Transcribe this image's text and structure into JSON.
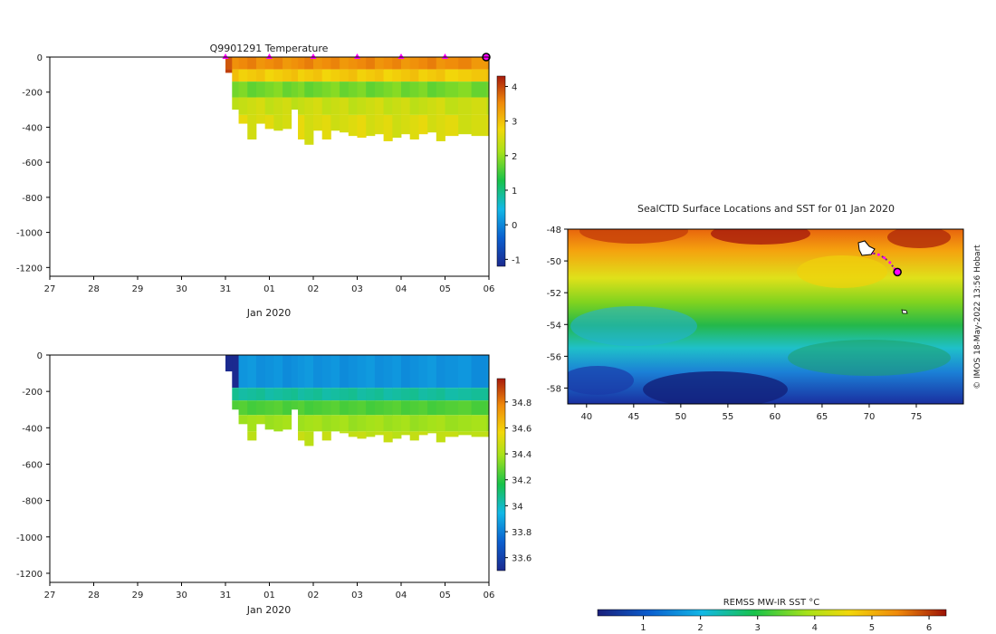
{
  "colors": {
    "temp_min": "#1b2a8f",
    "temp_max": "#a81b0c",
    "salt_min": "#1b2a8f",
    "salt_max": "#a81b0c",
    "sst_min": "#1a1f7a",
    "sst_max": "#9c1205",
    "profile_marker": "#ff00ff",
    "track": "#7a1f8a"
  },
  "chart_data": [
    {
      "id": "temperature",
      "type": "heatmap",
      "title": "Q9901291  Temperature",
      "xlabel": "Jan 2020",
      "ylabel": "",
      "x_ticks": [
        "27",
        "28",
        "29",
        "30",
        "31",
        "01",
        "02",
        "03",
        "04",
        "05",
        "06"
      ],
      "y_ticks": [
        0,
        -200,
        -400,
        -600,
        -800,
        -1000,
        -1200
      ],
      "ylim": [
        -1250,
        0
      ],
      "colorbar": {
        "ticks": [
          -1,
          0,
          1,
          2,
          3,
          4
        ],
        "range": [
          -1.2,
          4.3
        ]
      },
      "profile_days": [
        31.0,
        32.0,
        33.0,
        34.0,
        35.0,
        36.0,
        37.0
      ],
      "profiles": [
        {
          "day": 31.0,
          "depth": 90
        },
        {
          "day": 31.15,
          "depth": 300
        },
        {
          "day": 31.3,
          "depth": 380
        },
        {
          "day": 31.5,
          "depth": 470
        },
        {
          "day": 31.7,
          "depth": 380
        },
        {
          "day": 31.9,
          "depth": 410
        },
        {
          "day": 32.1,
          "depth": 420
        },
        {
          "day": 32.3,
          "depth": 410
        },
        {
          "day": 32.5,
          "depth": 300
        },
        {
          "day": 32.65,
          "depth": 470
        },
        {
          "day": 32.8,
          "depth": 500
        },
        {
          "day": 33.0,
          "depth": 420
        },
        {
          "day": 33.2,
          "depth": 470
        },
        {
          "day": 33.4,
          "depth": 420
        },
        {
          "day": 33.6,
          "depth": 430
        },
        {
          "day": 33.8,
          "depth": 450
        },
        {
          "day": 34.0,
          "depth": 460
        },
        {
          "day": 34.2,
          "depth": 450
        },
        {
          "day": 34.4,
          "depth": 440
        },
        {
          "day": 34.6,
          "depth": 480
        },
        {
          "day": 34.8,
          "depth": 460
        },
        {
          "day": 35.0,
          "depth": 440
        },
        {
          "day": 35.2,
          "depth": 470
        },
        {
          "day": 35.4,
          "depth": 440
        },
        {
          "day": 35.6,
          "depth": 430
        },
        {
          "day": 35.8,
          "depth": 480
        },
        {
          "day": 36.0,
          "depth": 450
        },
        {
          "day": 36.3,
          "depth": 440
        },
        {
          "day": 36.6,
          "depth": 450
        },
        {
          "day": 36.95,
          "depth": 450
        }
      ],
      "layers": [
        {
          "top": 0,
          "bottom": 70,
          "value": 3.5
        },
        {
          "top": 70,
          "bottom": 140,
          "value": 2.9
        },
        {
          "top": 140,
          "bottom": 230,
          "value": 1.8
        },
        {
          "top": 230,
          "bottom": 330,
          "value": 2.4
        },
        {
          "top": 330,
          "bottom": 520,
          "value": 2.55
        }
      ]
    },
    {
      "id": "salinity",
      "type": "heatmap",
      "title": "",
      "xlabel": "Jan 2020",
      "ylabel": "",
      "x_ticks": [
        "27",
        "28",
        "29",
        "30",
        "31",
        "01",
        "02",
        "03",
        "04",
        "05",
        "06"
      ],
      "y_ticks": [
        0,
        -200,
        -400,
        -600,
        -800,
        -1000,
        -1200
      ],
      "ylim": [
        -1250,
        0
      ],
      "colorbar": {
        "ticks": [
          33.6,
          33.8,
          34,
          34.2,
          34.4,
          34.6,
          34.8
        ],
        "range": [
          33.5,
          34.98
        ]
      },
      "layers": [
        {
          "top": 0,
          "bottom": 180,
          "value": 33.85
        },
        {
          "top": 180,
          "bottom": 250,
          "value": 34.05
        },
        {
          "top": 250,
          "bottom": 330,
          "value": 34.25
        },
        {
          "top": 330,
          "bottom": 420,
          "value": 34.38
        },
        {
          "top": 420,
          "bottom": 520,
          "value": 34.45
        }
      ]
    },
    {
      "id": "sst_map",
      "type": "heatmap",
      "title": "SealCTD Surface Locations and SST for 01 Jan 2020",
      "xlabel": "",
      "ylabel": "",
      "x_ticks": [
        40,
        45,
        50,
        55,
        60,
        65,
        70,
        75
      ],
      "y_ticks": [
        -48,
        -50,
        -52,
        -54,
        -56,
        -58
      ],
      "xlim": [
        38,
        80
      ],
      "ylim": [
        -59,
        -48
      ],
      "colorbar": {
        "label": "REMSS MW-IR SST °C",
        "ticks": [
          1,
          2,
          3,
          4,
          5,
          6
        ],
        "range": [
          0.2,
          6.3
        ]
      },
      "track": [
        [
          69.5,
          -49.4
        ],
        [
          70.3,
          -49.5
        ],
        [
          71.0,
          -49.6
        ],
        [
          71.6,
          -49.8
        ],
        [
          72.2,
          -50.1
        ],
        [
          72.7,
          -50.5
        ],
        [
          73.0,
          -50.7
        ]
      ],
      "current_position": [
        73.0,
        -50.7
      ]
    }
  ],
  "watermark": "© IMOS 18-May-2022 13:56 Hobart"
}
